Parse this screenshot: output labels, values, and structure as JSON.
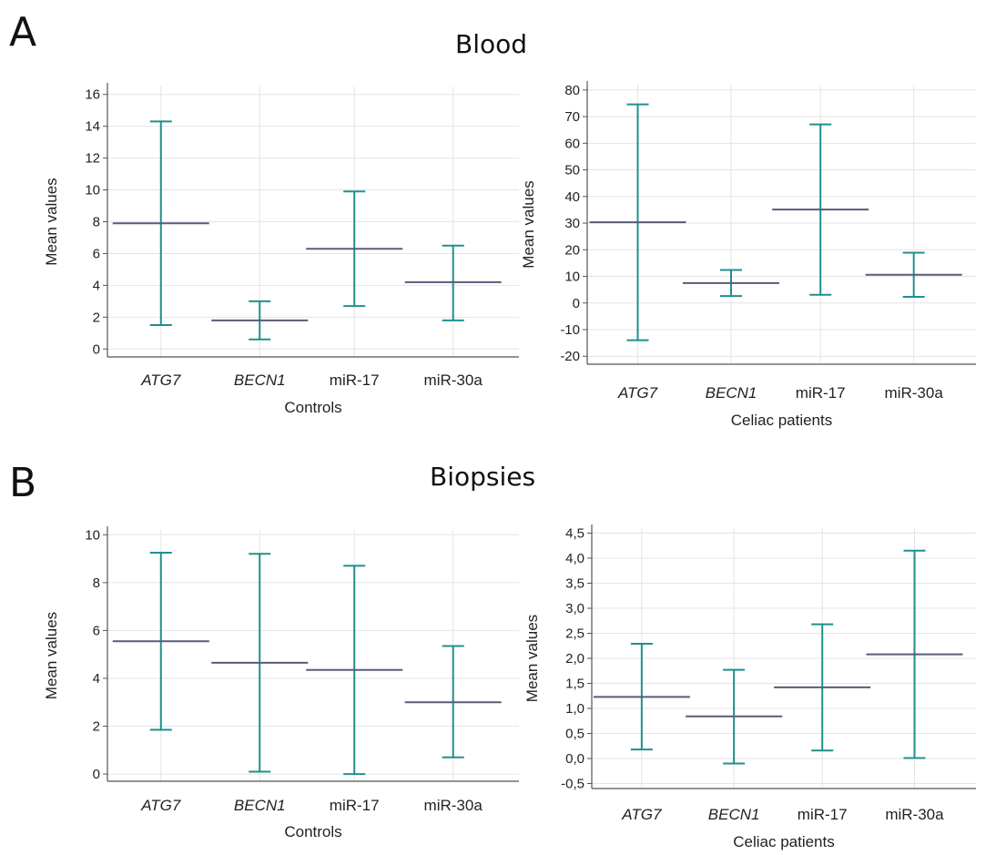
{
  "figure": {
    "letter_a": "A",
    "letter_b": "B",
    "title_a": "Blood",
    "title_b": "Biopsies"
  },
  "colors": {
    "whisker": "#1f8f8f",
    "mean": "#5a5a7a",
    "axis": "#555555",
    "grid": "#e4e4e4"
  },
  "chart_data": [
    {
      "type": "error-bar",
      "panel": "A",
      "section": "Blood",
      "xlabel": "Controls",
      "ylabel": "Mean values",
      "categories": [
        "ATG7",
        "BECN1",
        "miR-17",
        "miR-30a"
      ],
      "italic_categories": [
        true,
        true,
        false,
        false
      ],
      "mean": [
        7.9,
        1.8,
        6.3,
        4.2
      ],
      "low": [
        1.5,
        0.6,
        2.7,
        1.8
      ],
      "high": [
        14.3,
        3.0,
        9.9,
        6.5
      ],
      "ylim": [
        -0.5,
        16.5
      ],
      "yticks": [
        "0",
        "2",
        "4",
        "6",
        "8",
        "10",
        "12",
        "14",
        "16"
      ],
      "ytick_values": [
        0,
        2,
        4,
        6,
        8,
        10,
        12,
        14,
        16
      ],
      "grid": true
    },
    {
      "type": "error-bar",
      "panel": "A",
      "section": "Blood",
      "xlabel": "Celiac patients",
      "ylabel": "Mean values",
      "categories": [
        "ATG7",
        "BECN1",
        "miR-17",
        "miR-30a"
      ],
      "italic_categories": [
        true,
        true,
        false,
        false
      ],
      "mean": [
        30.3,
        7.5,
        35.1,
        10.6
      ],
      "low": [
        -14.0,
        2.6,
        3.1,
        2.3
      ],
      "high": [
        74.6,
        12.4,
        67.1,
        18.9
      ],
      "ylim": [
        -23,
        82
      ],
      "yticks": [
        "-20",
        "-10",
        "0",
        "10",
        "20",
        "30",
        "40",
        "50",
        "60",
        "70",
        "80"
      ],
      "ytick_values": [
        -20,
        -10,
        0,
        10,
        20,
        30,
        40,
        50,
        60,
        70,
        80
      ],
      "grid": true
    },
    {
      "type": "error-bar",
      "panel": "B",
      "section": "Biopsies",
      "xlabel": "Controls",
      "ylabel": "Mean values",
      "categories": [
        "ATG7",
        "BECN1",
        "miR-17",
        "miR-30a"
      ],
      "italic_categories": [
        true,
        true,
        false,
        false
      ],
      "mean": [
        5.55,
        4.65,
        4.35,
        3.0
      ],
      "low": [
        1.85,
        0.1,
        0.0,
        0.7
      ],
      "high": [
        9.25,
        9.2,
        8.7,
        5.35
      ],
      "ylim": [
        -0.3,
        10.2
      ],
      "yticks": [
        "0",
        "2",
        "4",
        "6",
        "8",
        "10"
      ],
      "ytick_values": [
        0,
        2,
        4,
        6,
        8,
        10
      ],
      "grid": true
    },
    {
      "type": "error-bar",
      "panel": "B",
      "section": "Biopsies",
      "xlabel": "Celiac patients",
      "ylabel": "Mean values",
      "categories": [
        "ATG7",
        "BECN1",
        "miR-17",
        "miR-30a"
      ],
      "italic_categories": [
        true,
        true,
        false,
        false
      ],
      "mean": [
        1.23,
        0.84,
        1.42,
        2.08
      ],
      "low": [
        0.18,
        -0.1,
        0.16,
        0.01
      ],
      "high": [
        2.29,
        1.77,
        2.68,
        4.15
      ],
      "ylim": [
        -0.6,
        4.6
      ],
      "yticks": [
        "-0,5",
        "0,0",
        "0,5",
        "1,0",
        "1,5",
        "2,0",
        "2,5",
        "3,0",
        "3,5",
        "4,0",
        "4,5"
      ],
      "ytick_values": [
        -0.5,
        0.0,
        0.5,
        1.0,
        1.5,
        2.0,
        2.5,
        3.0,
        3.5,
        4.0,
        4.5
      ],
      "grid": true
    }
  ]
}
